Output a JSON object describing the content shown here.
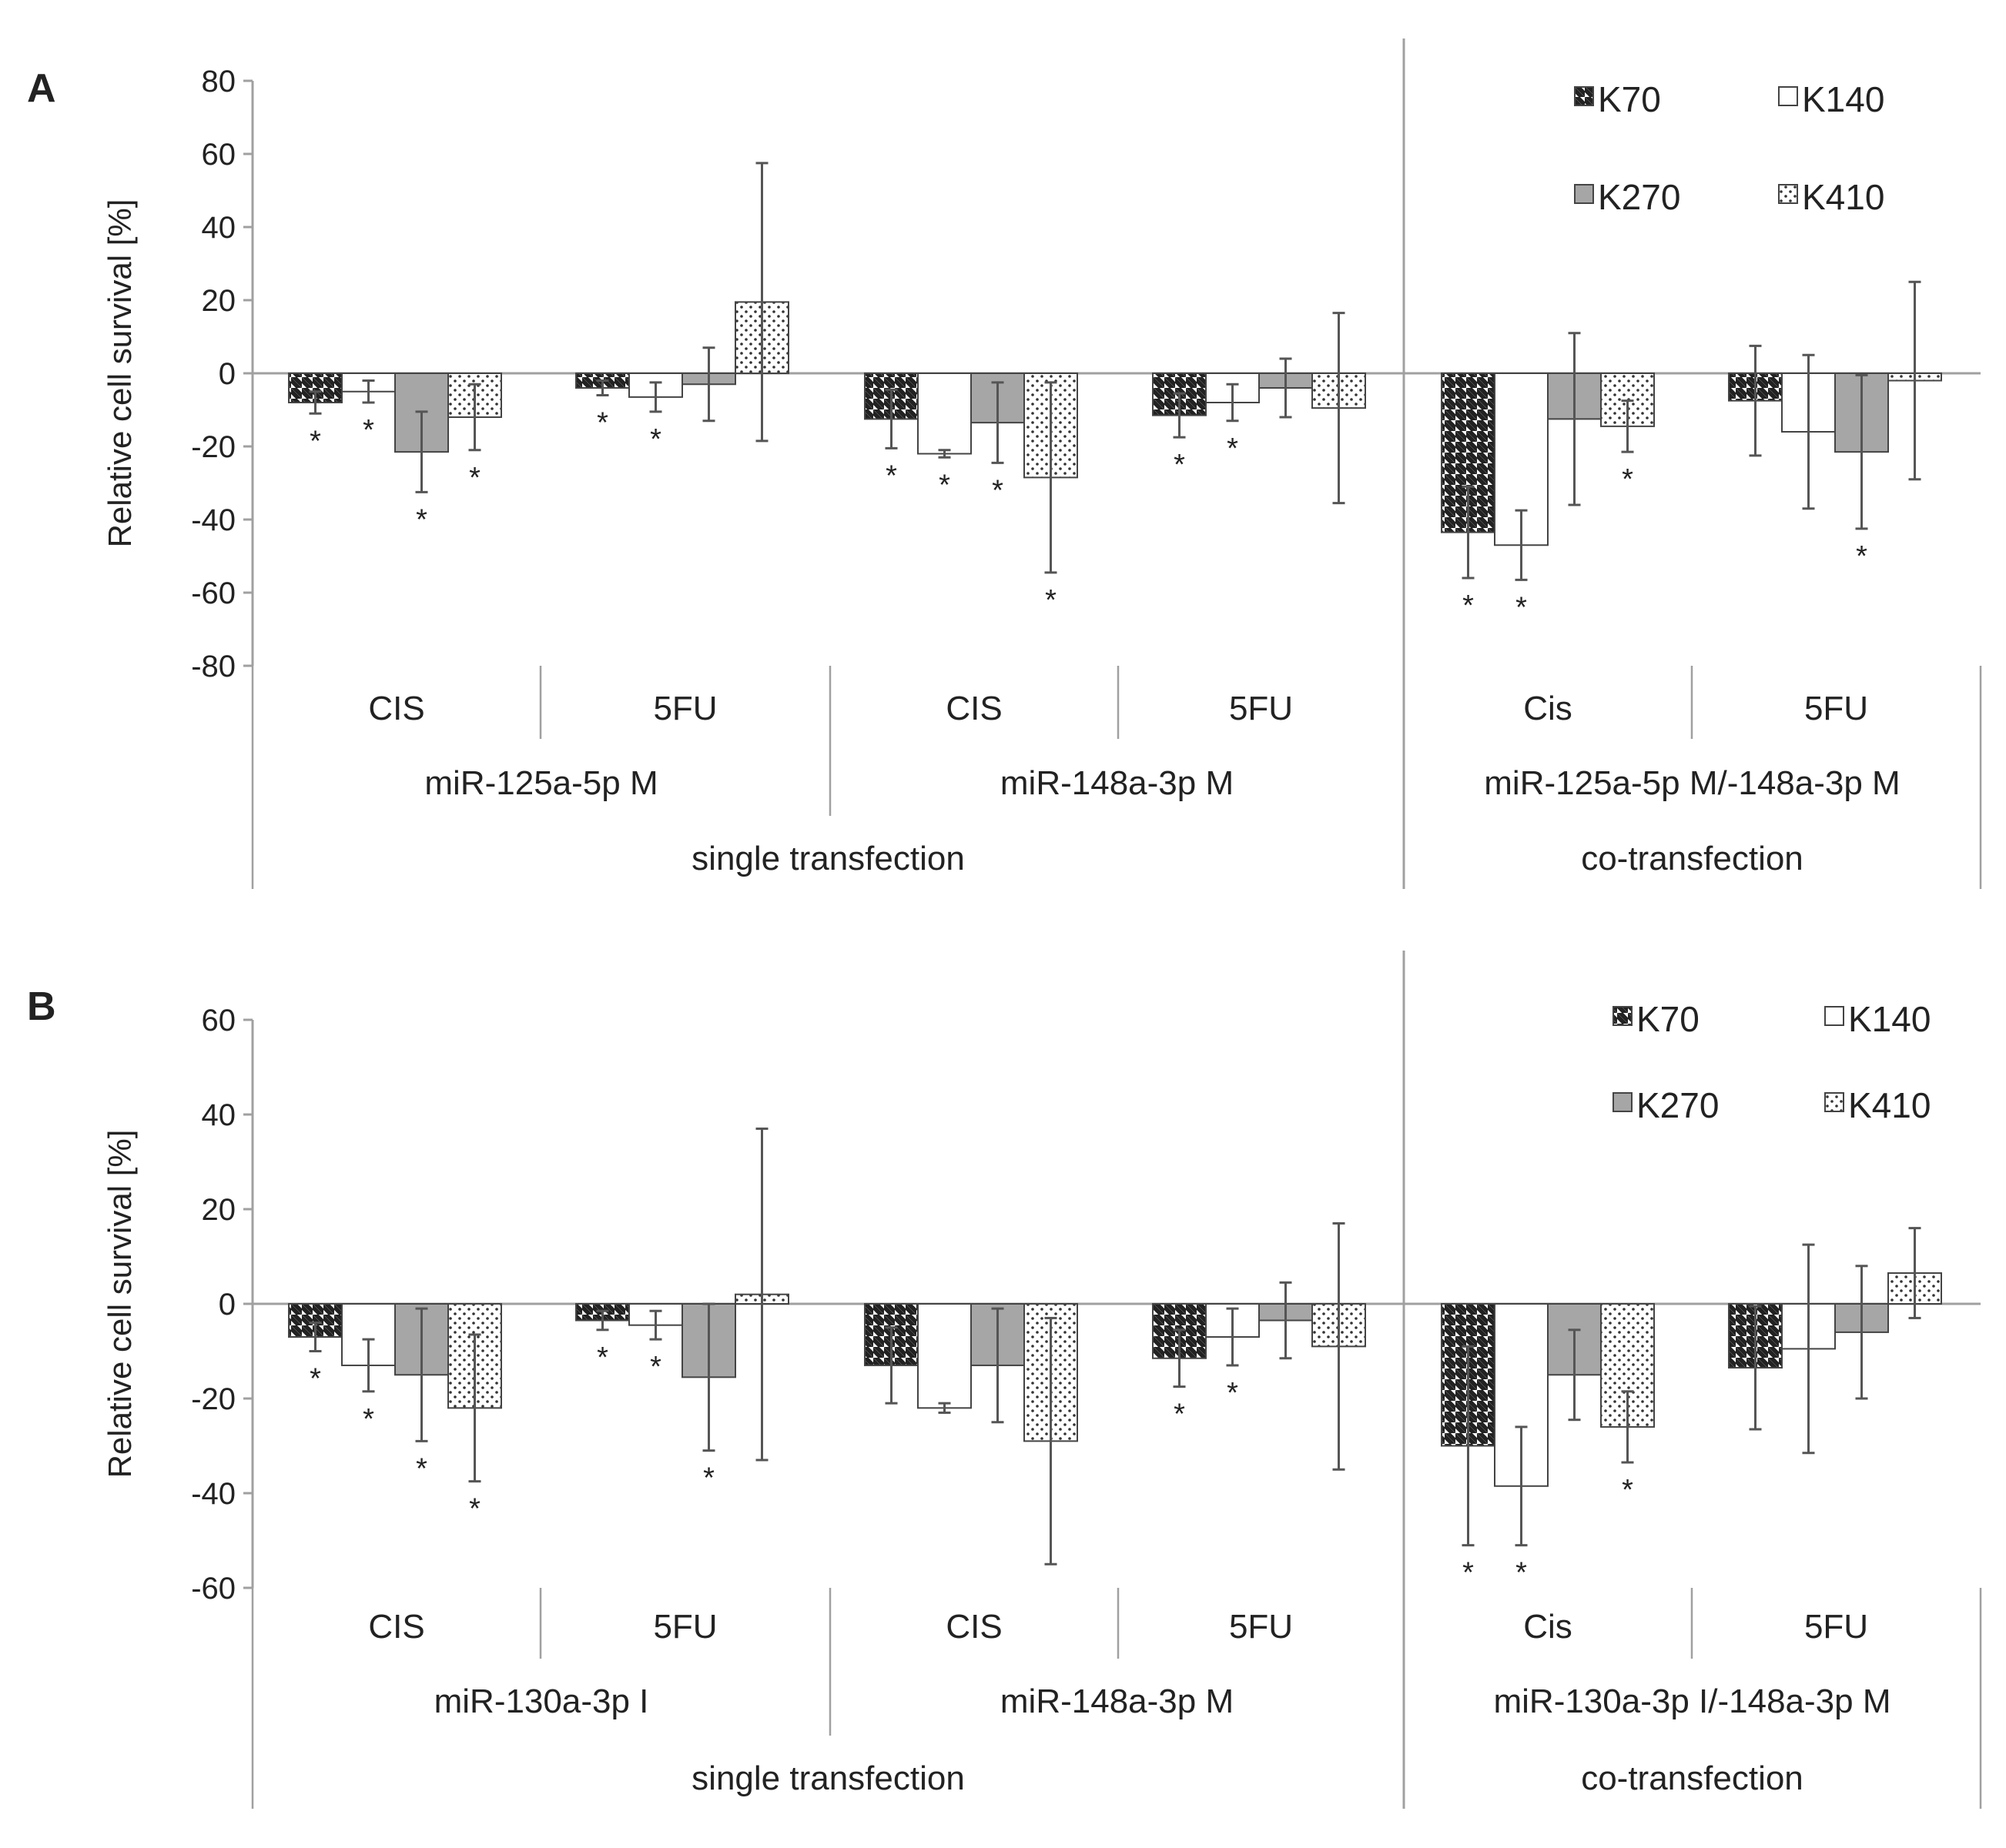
{
  "chart_data": [
    {
      "panel": "A",
      "type": "bar",
      "ylabel": "Relative cell survival [%]",
      "ylim": [
        -80,
        80
      ],
      "yticks": [
        80,
        60,
        40,
        20,
        0,
        -20,
        -40,
        -60,
        -80
      ],
      "series_names": [
        "K70",
        "K140",
        "K270",
        "K410"
      ],
      "groups": [
        {
          "treatment": "CIS",
          "mir": "miR-125a-5p M",
          "values": [
            -8,
            -5,
            -21.5,
            -12
          ],
          "errors": [
            3,
            3,
            11,
            9
          ],
          "sig": [
            true,
            true,
            true,
            true
          ]
        },
        {
          "treatment": "5FU",
          "mir": "miR-125a-5p M",
          "values": [
            -4,
            -6.5,
            -3,
            19.5
          ],
          "errors": [
            2,
            4,
            10,
            38
          ],
          "sig": [
            true,
            true,
            false,
            false
          ]
        },
        {
          "treatment": "CIS",
          "mir": "miR-148a-3p M",
          "values": [
            -12.5,
            -22,
            -13.5,
            -28.5
          ],
          "errors": [
            8,
            1,
            11,
            26
          ],
          "sig": [
            true,
            true,
            true,
            true
          ]
        },
        {
          "treatment": "5FU",
          "mir": "miR-148a-3p M",
          "values": [
            -11.5,
            -8,
            -4,
            -9.5
          ],
          "errors": [
            6,
            5,
            8,
            26
          ],
          "sig": [
            true,
            true,
            false,
            false
          ]
        },
        {
          "treatment": "Cis",
          "mir": "miR-125a-5p M/-148a-3p M",
          "values": [
            -43.5,
            -47,
            -12.5,
            -14.5
          ],
          "errors": [
            12.5,
            9.5,
            23.5,
            7
          ],
          "sig": [
            true,
            true,
            false,
            true
          ]
        },
        {
          "treatment": "5FU",
          "mir": "miR-125a-5p M/-148a-3p M",
          "values": [
            -7.5,
            -16,
            -21.5,
            -2
          ],
          "errors": [
            15,
            21,
            21,
            27
          ],
          "sig": [
            false,
            false,
            true,
            false
          ]
        }
      ],
      "mir_labels": [
        "miR-125a-5p M",
        "miR-148a-3p M",
        "miR-125a-5p M/-148a-3p M"
      ],
      "transfection_labels": [
        "single transfection",
        "co-transfection"
      ]
    },
    {
      "panel": "B",
      "type": "bar",
      "ylabel": "Relative cell survival [%]",
      "ylim": [
        -60,
        60
      ],
      "yticks": [
        60,
        40,
        20,
        0,
        -20,
        -40,
        -60
      ],
      "series_names": [
        "K70",
        "K140",
        "K270",
        "K410"
      ],
      "groups": [
        {
          "treatment": "CIS",
          "mir": "miR-130a-3p I",
          "values": [
            -7,
            -13,
            -15,
            -22
          ],
          "errors": [
            3,
            5.5,
            14,
            15.5
          ],
          "sig": [
            true,
            true,
            true,
            true
          ]
        },
        {
          "treatment": "5FU",
          "mir": "miR-130a-3p I",
          "values": [
            -3.5,
            -4.5,
            -15.5,
            2
          ],
          "errors": [
            2,
            3,
            15.5,
            35
          ],
          "sig": [
            true,
            true,
            true,
            false
          ]
        },
        {
          "treatment": "CIS",
          "mir": "miR-148a-3p M",
          "values": [
            -13,
            -22,
            -13,
            -29
          ],
          "errors": [
            8,
            1,
            12,
            26
          ],
          "sig": [
            false,
            false,
            false,
            false
          ]
        },
        {
          "treatment": "5FU",
          "mir": "miR-148a-3p M",
          "values": [
            -11.5,
            -7,
            -3.5,
            -9
          ],
          "errors": [
            6,
            6,
            8,
            26
          ],
          "sig": [
            true,
            true,
            false,
            false
          ]
        },
        {
          "treatment": "Cis",
          "mir": "miR-130a-3p I/-148a-3p M",
          "values": [
            -30,
            -38.5,
            -15,
            -26
          ],
          "errors": [
            21,
            12.5,
            9.5,
            7.5
          ],
          "sig": [
            true,
            true,
            false,
            true
          ]
        },
        {
          "treatment": "5FU",
          "mir": "miR-130a-3p I/-148a-3p M",
          "values": [
            -13.5,
            -9.5,
            -6,
            6.5
          ],
          "errors": [
            13,
            22,
            14,
            9.5
          ],
          "sig": [
            false,
            false,
            false,
            false
          ]
        }
      ],
      "mir_labels": [
        "miR-130a-3p I",
        "miR-148a-3p M",
        "miR-130a-3p I/-148a-3p M"
      ],
      "transfection_labels": [
        "single transfection",
        "co-transfection"
      ]
    }
  ],
  "significance_marker": "*",
  "colors": {
    "axis": "#a0a0a0",
    "bar_stroke": "#444444",
    "error": "#555555",
    "k270_fill": "#a6a6a6",
    "k140_fill": "#ffffff"
  }
}
